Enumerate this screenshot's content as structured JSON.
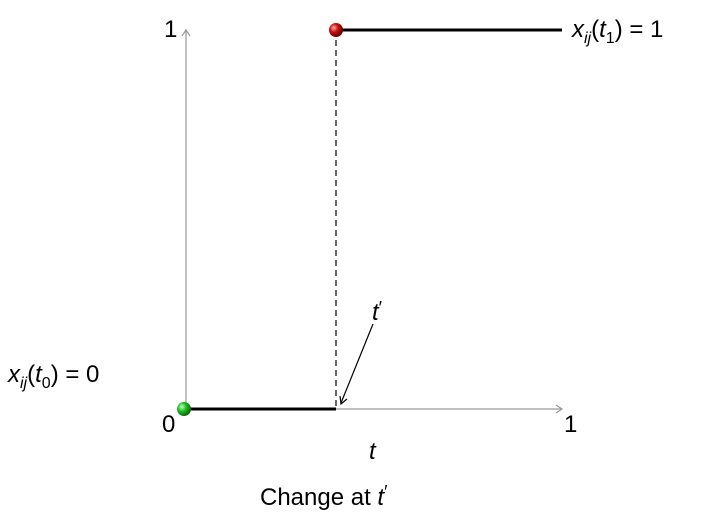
{
  "diagram": {
    "caption": {
      "prefix": "Change at ",
      "var": "t",
      "prime": "′"
    },
    "y_axis": {
      "top_label": "1",
      "origin_label": "0",
      "color": "#9a9a9a"
    },
    "x_axis": {
      "end_label": "1",
      "var_label": "t",
      "color": "#9a9a9a"
    },
    "change_marker": {
      "var": "t",
      "prime": "′"
    },
    "start_state": {
      "var": "x",
      "sub": "ij",
      "time_var": "t",
      "time_sub": "0",
      "rhs": "= 0",
      "marker_color": "#22c322"
    },
    "end_state": {
      "var": "x",
      "sub": "ij",
      "time_var": "t",
      "time_sub": "1",
      "rhs": "= 1",
      "marker_color": "#cc1111"
    },
    "step_color": "#000000"
  }
}
